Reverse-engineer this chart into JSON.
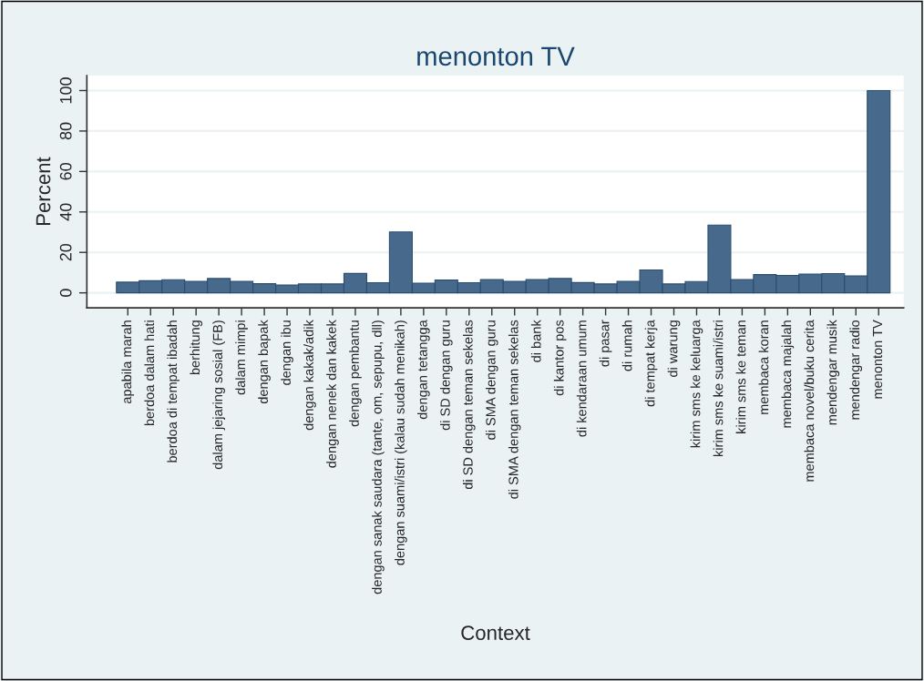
{
  "chart_data": {
    "type": "bar",
    "title": "menonton TV",
    "xlabel": "Context",
    "ylabel": "Percent",
    "categories": [
      "apabila marah",
      "berdoa dalam hati",
      "berdoa di tempat ibadah",
      "berhitung",
      "dalam jejaring sosial (FB)",
      "dalam mimpi",
      "dengan bapak",
      "dengan ibu",
      "dengan kakak/adik",
      "dengan nenek dan kakek",
      "dengan pembantu",
      "dengan sanak saudara (tante, om, sepupu, dll)",
      "dengan suami/istri (kalau sudah menikah)",
      "dengan tetangga",
      "di SD dengan guru",
      "di SD dengan teman sekelas",
      "di SMA dengan guru",
      "di SMA dengan teman sekelas",
      "di bank",
      "di kantor pos",
      "di kendaraan umum",
      "di pasar",
      "di rumah",
      "di tempat kerja",
      "di warung",
      "kirim sms ke keluarga",
      "kirim sms ke suami/istri",
      "kirim sms ke teman",
      "membaca koran",
      "membaca majalah",
      "membaca novel/buku cerita",
      "mendengar musik",
      "mendengar radio",
      "menonton TV"
    ],
    "values": [
      5.3,
      6.0,
      6.5,
      5.7,
      7.1,
      5.7,
      4.5,
      3.9,
      4.4,
      4.4,
      9.6,
      5.0,
      30.1,
      4.8,
      6.3,
      5.0,
      6.6,
      5.7,
      6.6,
      7.1,
      5.1,
      4.4,
      5.7,
      11.3,
      4.4,
      5.6,
      33.5,
      6.6,
      9.0,
      8.6,
      9.3,
      9.5,
      8.4,
      100
    ],
    "color": "#476a8c",
    "ylim": [
      -7.4,
      107.4
    ],
    "yticks": [
      0,
      20,
      40,
      60,
      80,
      100
    ],
    "grid": "y"
  }
}
